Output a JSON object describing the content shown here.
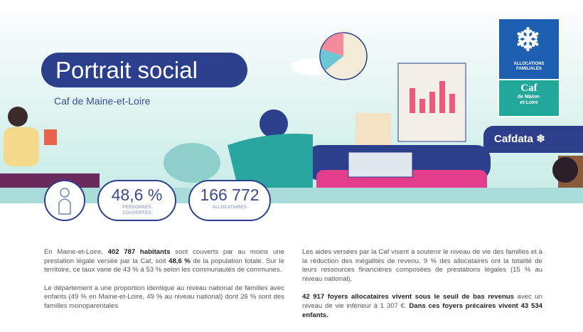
{
  "header": {
    "title": "Portrait social",
    "subtitle": "Caf de Maine-et-Loire"
  },
  "logo": {
    "line1": "ALLOCATIONS",
    "line2": "FAMILIALES",
    "caf": "Caf",
    "dep1": "de Maine-",
    "dep2": "et-Loire"
  },
  "brand": {
    "name": "Cafdata"
  },
  "stats": [
    {
      "icon": "person-icon"
    },
    {
      "value": "48,6 %",
      "label1": "PERSONNES",
      "label2": "COUVERTES"
    },
    {
      "value": "166 772",
      "label1": "ALLOCATAIRES"
    }
  ],
  "left_col": {
    "p1": {
      "a": "En Maine-et-Loire, ",
      "b1": "402 787 habitants",
      "c": " sont couverts par au moins une prestation légale versée par la Caf, soit ",
      "b2": "48,6 %",
      "d": " de la population totale. Sur le territoire, ce taux varie de 43 % à 53 % selon les communautés de communes."
    },
    "p2": "Le département a une proportion identique au niveau national de familles avec enfants (49 % en Maine-et-Loire, 49 % au niveau national) dont 26 % sont des familles monoparentales"
  },
  "right_col": {
    "p1": "Les aides versées par la Caf visent à soutenir le niveau de vie des familles et à la réduction des inégalités de revenu. 9 % des allocataires ont la totalité de leurs ressources financières composées de prestations légales (15 % au niveau national).",
    "p2": {
      "b1": "42 917 foyers allocataires vivent sous le seuil de bas revenus",
      "c": " avec un niveau de vie inférieur à 1 307 €. ",
      "b2": "Dans ces foyers précaires vivent 43 534 enfants."
    }
  },
  "colors": {
    "navy": "#2b3f8c",
    "blue": "#1e5eb0",
    "teal": "#22a79b",
    "pink": "#e23e8c"
  }
}
